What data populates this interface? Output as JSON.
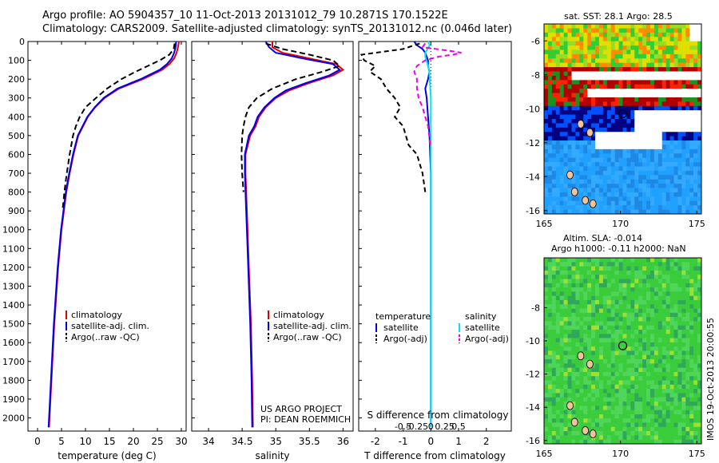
{
  "titles": {
    "line1": "Argo profile: AO 5904357_10 11-Oct-2013 20131012_79 10.2871S 170.1522E",
    "line2": "Climatology: CARS2009. Satellite-adjusted climatology: synTS_20131012.nc (0.046d later)"
  },
  "map_titles": {
    "sst": "sat. SST: 28.1  Argo: 28.5",
    "sla1": "Altim. SLA: -0.014",
    "sla2": "Argo h1000: -0.11 h2000: NaN"
  },
  "timestamp": "IMOS 19-Oct-2013 20:00:55",
  "project": {
    "line1": "US ARGO PROJECT",
    "line2": "PI: DEAN ROEMMICH"
  },
  "colors": {
    "climatology": "#e00000",
    "satellite": "#0000ee",
    "argo": "#000000",
    "sal_satellite": "#00e5ee",
    "sal_argo": "#ee00ee"
  },
  "chart_data": [
    {
      "type": "line",
      "xlabel": "temperature (deg C)",
      "ylabel": "",
      "xlim": [
        -2,
        31
      ],
      "ylim": [
        2070,
        0
      ],
      "xticks": [
        0,
        5,
        10,
        15,
        20,
        25,
        30
      ],
      "yticks": [
        0,
        100,
        200,
        300,
        400,
        500,
        600,
        700,
        800,
        900,
        1000,
        1100,
        1200,
        1300,
        1400,
        1500,
        1600,
        1700,
        1800,
        1900,
        2000
      ],
      "legend": [
        "climatology",
        "satellite-adj. clim.",
        "Argo(..raw -QC)"
      ],
      "series": [
        {
          "name": "climatology",
          "depth": [
            0,
            30,
            60,
            90,
            120,
            150,
            200,
            250,
            300,
            350,
            400,
            500,
            600,
            700,
            800,
            1000,
            1200,
            1500,
            1800,
            2050
          ],
          "values": [
            29.5,
            29.3,
            29.0,
            28.5,
            27.5,
            26.0,
            22.0,
            17.0,
            14.0,
            12.0,
            10.5,
            8.5,
            7.5,
            6.7,
            6.0,
            5.0,
            4.3,
            3.5,
            2.9,
            2.4
          ]
        },
        {
          "name": "satellite-adj. clim.",
          "depth": [
            0,
            30,
            60,
            90,
            120,
            150,
            200,
            250,
            300,
            350,
            400,
            500,
            600,
            700,
            800,
            1000,
            1200,
            1500,
            1800,
            2050
          ],
          "values": [
            28.9,
            28.8,
            28.5,
            28.0,
            27.0,
            25.5,
            21.5,
            16.7,
            13.8,
            11.9,
            10.4,
            8.4,
            7.4,
            6.6,
            5.9,
            4.9,
            4.2,
            3.4,
            2.8,
            2.3
          ]
        },
        {
          "name": "Argo(..raw -QC)",
          "depth": [
            10,
            40,
            70,
            100,
            130,
            160,
            200,
            250,
            300,
            350,
            400,
            450,
            500,
            600,
            700,
            800,
            900
          ],
          "values": [
            28.6,
            28.4,
            27.5,
            25.5,
            23.0,
            20.5,
            17.5,
            14.5,
            12.2,
            10.0,
            8.8,
            8.0,
            7.4,
            6.7,
            6.1,
            5.6,
            5.2
          ]
        }
      ]
    },
    {
      "type": "line",
      "xlabel": "salinity",
      "ylabel": "",
      "xlim": [
        33.75,
        36.15
      ],
      "ylim": [
        2070,
        0
      ],
      "xticks": [
        34,
        34.5,
        35,
        35.5,
        36
      ],
      "legend": [
        "climatology",
        "satellite-adj. clim.",
        "Argo(..raw -QC)"
      ],
      "series": [
        {
          "name": "climatology",
          "depth": [
            0,
            30,
            60,
            90,
            120,
            150,
            180,
            220,
            260,
            300,
            350,
            400,
            450,
            500,
            600,
            700,
            800,
            1000,
            1200,
            1500,
            1800,
            2050
          ],
          "values": [
            34.95,
            34.95,
            35.1,
            35.5,
            35.9,
            36.0,
            35.85,
            35.5,
            35.2,
            35.0,
            34.85,
            34.75,
            34.7,
            34.62,
            34.55,
            34.55,
            34.56,
            34.58,
            34.6,
            34.63,
            34.65,
            34.66
          ]
        },
        {
          "name": "satellite-adj. clim.",
          "depth": [
            0,
            30,
            60,
            90,
            120,
            150,
            180,
            220,
            260,
            300,
            350,
            400,
            450,
            500,
            600,
            700,
            800,
            1000,
            1200,
            1500,
            1800,
            2050
          ],
          "values": [
            34.85,
            34.9,
            35.0,
            35.4,
            35.85,
            35.95,
            35.8,
            35.45,
            35.15,
            34.98,
            34.83,
            34.73,
            34.68,
            34.6,
            34.54,
            34.54,
            34.55,
            34.57,
            34.59,
            34.62,
            34.64,
            34.65
          ]
        },
        {
          "name": "Argo(..raw -QC)",
          "depth": [
            10,
            40,
            70,
            100,
            130,
            160,
            200,
            250,
            300,
            350,
            400,
            450,
            500,
            600,
            700,
            800
          ],
          "values": [
            34.85,
            35.1,
            35.5,
            35.85,
            35.95,
            35.7,
            35.3,
            34.95,
            34.72,
            34.6,
            34.55,
            34.52,
            34.5,
            34.49,
            34.5,
            34.52
          ]
        }
      ]
    },
    {
      "type": "line",
      "xlabel": "T difference from climatology",
      "x2label": "S difference from climatology",
      "xlim": [
        -2.6,
        2.9
      ],
      "ylim": [
        2070,
        0
      ],
      "xticks": [
        -2,
        -1,
        0,
        1,
        2
      ],
      "x2ticks": [
        -0.5,
        -0.25,
        0,
        0.25,
        0.5
      ],
      "x2ticklabels": [
        "-0.5",
        "-0.25",
        "0",
        "0.25",
        "0.5"
      ],
      "legend_t_title": "temperature",
      "legend_s_title": "salinity",
      "legend_t": [
        "satellite",
        "Argo(-adj)"
      ],
      "legend_s": [
        "satellite",
        "Argo(-adj)"
      ],
      "series": [
        {
          "name": "satellite",
          "depth": [
            0,
            20,
            40,
            60,
            80,
            100,
            130,
            160,
            200,
            250,
            300,
            400,
            500,
            700,
            900,
            1100,
            1300,
            1500,
            1700,
            1900,
            2050
          ],
          "values": [
            -0.6,
            -0.5,
            -0.3,
            -0.2,
            -0.15,
            -0.1,
            -0.1,
            -0.05,
            -0.1,
            -0.2,
            -0.15,
            -0.1,
            -0.05,
            0,
            0,
            0,
            0,
            0,
            0,
            0,
            0
          ]
        },
        {
          "name": "Argo(-adj)",
          "depth": [
            10,
            40,
            70,
            100,
            130,
            160,
            200,
            250,
            300,
            350,
            400,
            450,
            500,
            550,
            600,
            700,
            800
          ],
          "values": [
            -0.4,
            -1.0,
            -2.5,
            -2.4,
            -2.0,
            -2.2,
            -1.8,
            -1.6,
            -1.3,
            -1.1,
            -1.3,
            -1.0,
            -0.9,
            -0.8,
            -0.5,
            -0.3,
            -0.2
          ]
        },
        {
          "name": "sal satellite",
          "depth": [
            0,
            20,
            40,
            60,
            80,
            100,
            150,
            200,
            300,
            400,
            600,
            800,
            1000,
            1500,
            2050
          ],
          "values": [
            -0.05,
            -0.02,
            -0.06,
            -0.1,
            -0.1,
            -0.08,
            -0.03,
            -0.02,
            0,
            0,
            0,
            0,
            0,
            0,
            0
          ]
        },
        {
          "name": "sal Argo(-adj)",
          "depth": [
            10,
            30,
            50,
            60,
            70,
            80,
            100,
            130,
            160,
            200,
            250,
            300,
            350,
            400,
            450,
            500,
            550
          ],
          "values": [
            -0.1,
            -0.15,
            0.35,
            0.55,
            0.4,
            0.15,
            -0.1,
            -0.25,
            -0.3,
            -0.25,
            -0.25,
            -0.22,
            -0.15,
            -0.1,
            -0.05,
            -0.03,
            -0.01
          ]
        }
      ]
    },
    {
      "type": "heatmap",
      "title": "sat. SST: 28.1  Argo: 28.5",
      "xlim": [
        165,
        175.3
      ],
      "ylim": [
        -16.2,
        -5
      ],
      "xticks": [
        165,
        170,
        175
      ],
      "yticks": [
        -6,
        -8,
        -10,
        -12,
        -14,
        -16
      ],
      "argo_point": [
        170.15,
        -10.29
      ]
    },
    {
      "type": "heatmap",
      "title": "Altim. SLA: -0.014",
      "xlim": [
        165,
        175.3
      ],
      "ylim": [
        -16.2,
        -5
      ],
      "xticks": [
        165,
        170,
        175
      ],
      "yticks": [
        -8,
        -10,
        -12,
        -14,
        -16
      ],
      "argo_point": [
        170.15,
        -10.29
      ]
    }
  ]
}
